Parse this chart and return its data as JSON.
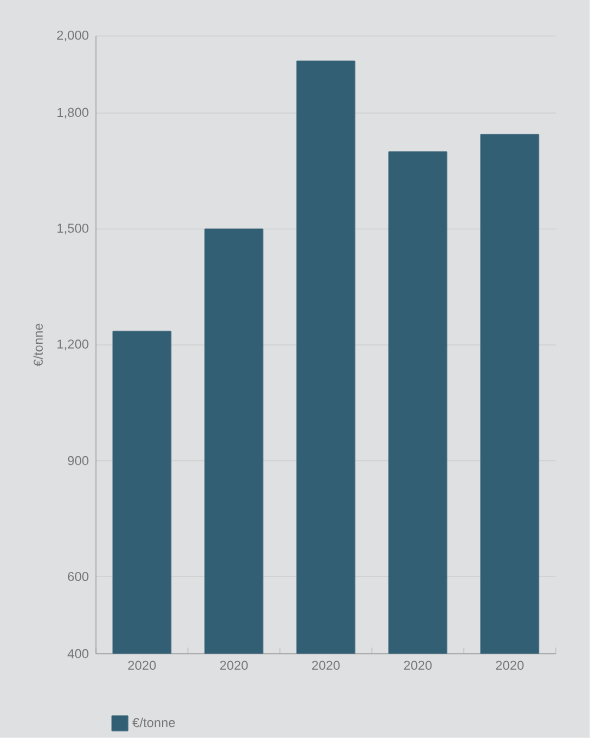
{
  "chart_data": {
    "type": "bar",
    "ylabel": "€/tonne",
    "categories": [
      "2020",
      "2020",
      "2020",
      "2020",
      "2020"
    ],
    "series": [
      {
        "name": "€/tonne",
        "color": "#335f75",
        "values": [
          1235,
          1500,
          1935,
          1700,
          1745
        ]
      }
    ],
    "ylim": [
      400,
      2000
    ],
    "yticks": [
      400,
      600,
      900,
      {
        "value": 1200,
        "label": "1,200"
      },
      {
        "value": 1500,
        "label": "1,500"
      },
      {
        "value": 1800,
        "label": "1,800"
      },
      {
        "value": 2000,
        "label": "2,000"
      }
    ],
    "grid": "y",
    "legend": "bottom left"
  }
}
